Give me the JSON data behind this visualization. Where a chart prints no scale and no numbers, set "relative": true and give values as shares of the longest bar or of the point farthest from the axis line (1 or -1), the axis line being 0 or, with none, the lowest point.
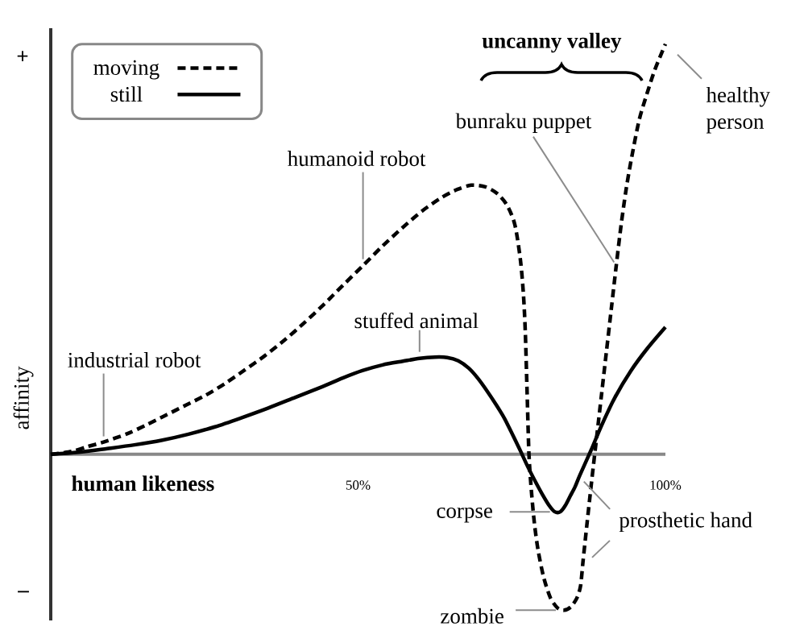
{
  "chart_data": {
    "type": "line",
    "relative": true,
    "xlabel": "human likeness",
    "ylabel": "affinity",
    "xlim": [
      0,
      100
    ],
    "xticks": [
      {
        "value": 50,
        "label": "50%"
      },
      {
        "value": 100,
        "label": "100%"
      }
    ],
    "legend": "top left",
    "series": [
      {
        "name": "moving",
        "color": "#000000",
        "line_style": "dashed",
        "x": [
          0,
          3.4,
          6,
          8.6,
          12.4,
          15.6,
          18.8,
          22,
          25.2,
          28.4,
          31.6,
          34.8,
          38,
          41.2,
          44.4,
          47.6,
          50.8,
          54,
          57.2,
          60.4,
          63.6,
          66.2,
          68.4,
          70.7,
          72.6,
          74.2,
          75.5,
          76.4,
          76.9,
          77.2,
          77.5,
          77.8,
          78.2,
          78.7,
          79.3,
          80.2,
          81.3,
          82.5,
          83.5,
          84.6,
          85.6,
          86.2,
          86.6,
          87.2,
          88,
          88.8,
          89.6,
          90.4,
          91.2,
          92,
          92.8,
          93.6,
          94.4,
          95.7,
          97,
          98.3,
          100
        ],
        "values": [
          0,
          0.007,
          0.019,
          0.03,
          0.05,
          0.072,
          0.096,
          0.12,
          0.144,
          0.173,
          0.206,
          0.24,
          0.278,
          0.32,
          0.365,
          0.413,
          0.46,
          0.508,
          0.552,
          0.593,
          0.626,
          0.646,
          0.656,
          0.652,
          0.636,
          0.608,
          0.56,
          0.475,
          0.39,
          0.3,
          0.15,
          0,
          -0.09,
          -0.17,
          -0.235,
          -0.3,
          -0.35,
          -0.375,
          -0.38,
          -0.372,
          -0.35,
          -0.32,
          -0.26,
          -0.175,
          -0.065,
          0.04,
          0.145,
          0.25,
          0.355,
          0.46,
          0.56,
          0.645,
          0.715,
          0.813,
          0.879,
          0.938,
          1
        ]
      },
      {
        "name": "still",
        "color": "#000000",
        "line_style": "solid",
        "x": [
          0,
          4.5,
          9.2,
          13.6,
          18,
          22.4,
          26.7,
          31,
          35.4,
          39.8,
          44.2,
          47.5,
          50.7,
          54,
          57.3,
          60,
          62.5,
          64.5,
          66.3,
          68,
          69.5,
          71,
          72.5,
          73.8,
          74.9,
          76.3,
          77.6,
          78.9,
          80,
          81.1,
          82,
          82.9,
          83.7,
          84.5,
          85.3,
          86.1,
          87.9,
          89.6,
          91.8,
          94.4,
          97,
          100
        ],
        "values": [
          0,
          0.005,
          0.014,
          0.023,
          0.034,
          0.049,
          0.067,
          0.089,
          0.113,
          0.139,
          0.165,
          0.186,
          0.204,
          0.218,
          0.227,
          0.234,
          0.237,
          0.236,
          0.228,
          0.21,
          0.185,
          0.154,
          0.12,
          0.088,
          0.055,
          0.012,
          -0.03,
          -0.068,
          -0.098,
          -0.125,
          -0.14,
          -0.14,
          -0.125,
          -0.102,
          -0.079,
          -0.05,
          0.01,
          0.07,
          0.139,
          0.204,
          0.257,
          0.31
        ]
      }
    ],
    "annotations": [
      "+",
      "–",
      "uncanny valley",
      {
        "text": "industrial robot",
        "x": 8.6,
        "y": 0.03
      },
      {
        "text": "humanoid robot",
        "x": 50.8,
        "y": 0.46
      },
      {
        "text": "stuffed animal",
        "x": 60,
        "y": 0.234
      },
      {
        "text": "bunraku puppet",
        "x": 92,
        "y": 0.46
      },
      {
        "text": "healthy person",
        "x": 100,
        "y": 1
      },
      {
        "text": "corpse",
        "x": 82,
        "y": -0.14
      },
      {
        "text": "zombie",
        "x": 83.5,
        "y": -0.38
      },
      {
        "text": "prosthetic hand",
        "x": 86,
        "y": -0.055
      }
    ]
  }
}
